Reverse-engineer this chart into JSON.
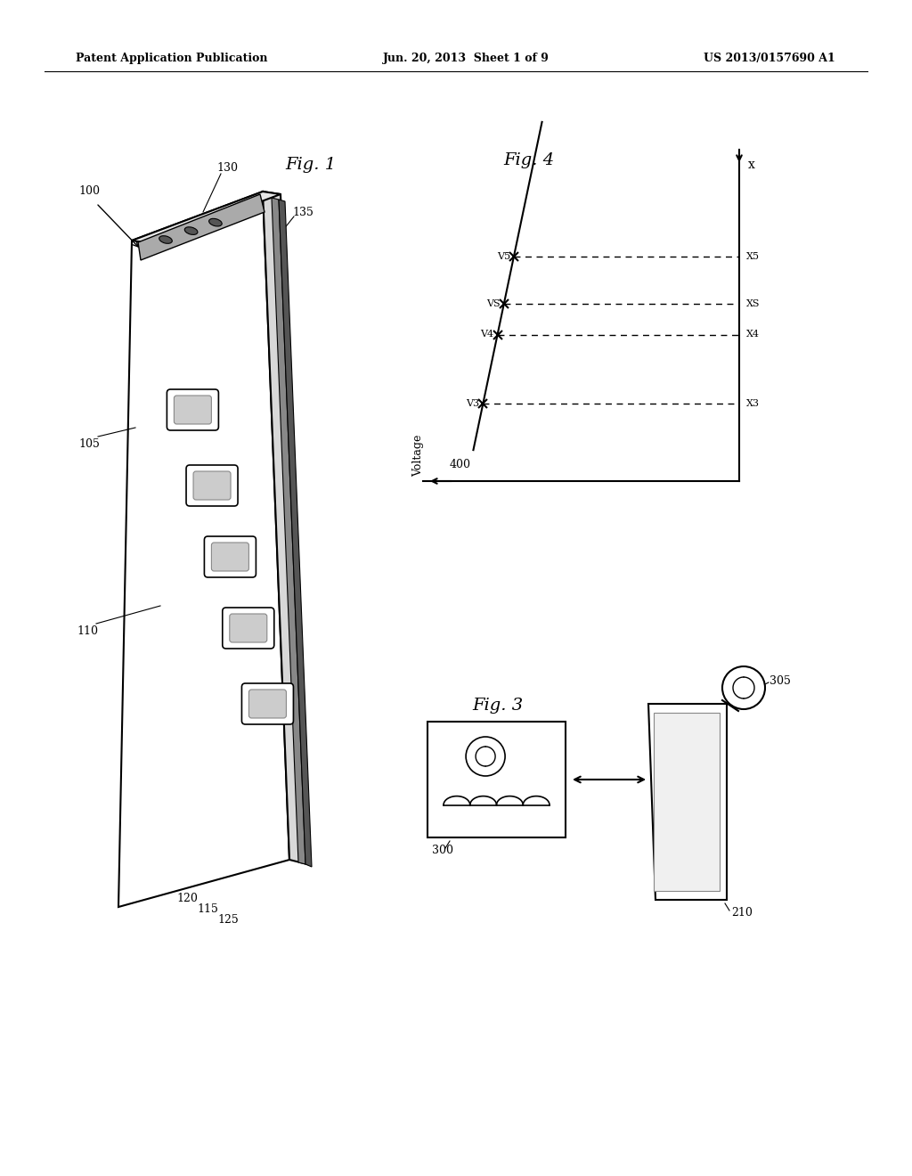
{
  "bg_color": "#ffffff",
  "header_left": "Patent Application Publication",
  "header_center": "Jun. 20, 2013  Sheet 1 of 9",
  "header_right": "US 2013/0157690 A1",
  "fig1_label": "Fig. 1",
  "fig3_label": "Fig. 3",
  "fig4_label": "Fig. 4",
  "ref_100": "100",
  "ref_105": "105",
  "ref_110": "110",
  "ref_115": "115",
  "ref_120": "120",
  "ref_125": "125",
  "ref_130": "130",
  "ref_135": "135",
  "ref_210": "210",
  "ref_300": "300",
  "ref_305": "305",
  "fig4_x_label": "x",
  "fig4_voltage_label": "Voltage",
  "fig4_400": "400",
  "fig4_V3": "V3",
  "fig4_V4": "V4",
  "fig4_VS": "VS",
  "fig4_V5": "V5",
  "fig4_X3": "X3",
  "fig4_X4": "X4",
  "fig4_XS": "XS",
  "fig4_X5": "X5",
  "lc": "#000000",
  "header_fontsize": 9,
  "label_fontsize": 9,
  "fig_label_fontsize": 14
}
